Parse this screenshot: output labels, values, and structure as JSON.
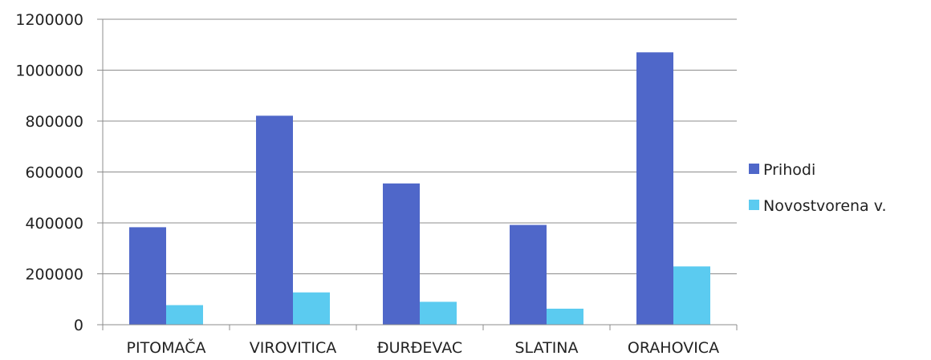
{
  "chart_data": {
    "type": "bar",
    "categories": [
      "PITOMAČA",
      "VIROVITICA",
      "ĐURĐEVAC",
      "SLATINA",
      "ORAHOVICA"
    ],
    "series": [
      {
        "name": "Prihodi",
        "values": [
          383000,
          821000,
          555000,
          392000,
          1070000
        ],
        "color": "#4F67C9"
      },
      {
        "name": "Novostvorena v.",
        "values": [
          77000,
          127000,
          90000,
          63000,
          229000
        ],
        "color": "#5BCBF0"
      }
    ],
    "ylim": [
      0,
      1200000
    ],
    "yticks": [
      "0",
      "200000",
      "400000",
      "600000",
      "800000",
      "1000000",
      "1200000"
    ],
    "grid": true,
    "legend": "right",
    "title": "",
    "xlabel": "",
    "ylabel": ""
  }
}
